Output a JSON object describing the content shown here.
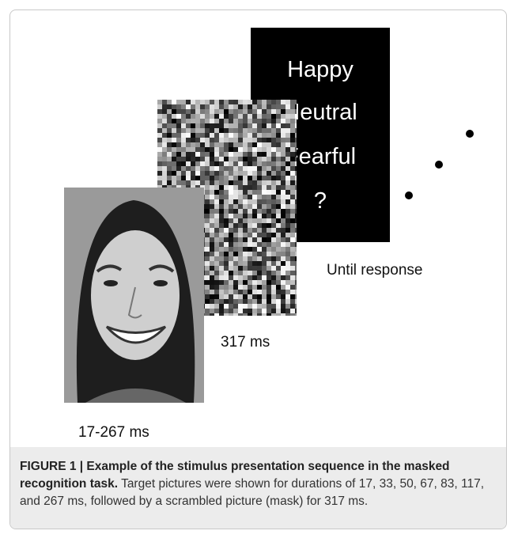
{
  "figure": {
    "response_screen": {
      "options": [
        "Happy",
        "Neutral",
        "Fearful",
        "?"
      ],
      "duration": "Until response"
    },
    "mask_duration": "317 ms",
    "target_duration": "17-267 ms",
    "caption": {
      "label": "FIGURE 1 | Example of the stimulus presentation sequence in the masked recognition task.",
      "text": "Target pictures were shown for durations of 17, 33, 50, 67, 83, 117, and 267 ms, followed by a scrambled picture (mask) for 317 ms."
    }
  }
}
